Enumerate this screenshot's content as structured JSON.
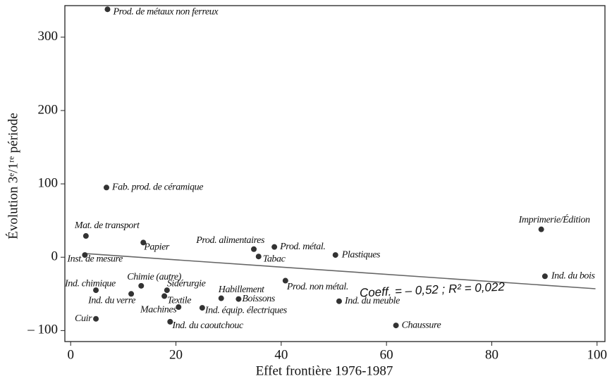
{
  "chart_data": {
    "type": "scatter",
    "xlabel": "Effet frontière 1976-1987",
    "ylabel": "Évolution 3ᵉ/1ʳᵉ période",
    "labels": [
      "Prod. de métaux non ferreux",
      "Fab. prod. de céramique",
      "Mat. de transport",
      "Inst. de mesure",
      "Papier",
      "Prod. alimentaires",
      "Prod. métal.",
      "Tabac",
      "Plastiques",
      "Imprimerie/Édition",
      "Ind. du bois",
      "Prod. non métal.",
      "Ind. du meuble",
      "Chaussure",
      "Ind. chimique",
      "Ind. du verre",
      "Chimie (autre)",
      "Sidérurgie",
      "Textile",
      "Machines",
      "Habillement",
      "Boissons",
      "Ind. équip. électriques",
      "Ind. du caoutchouc",
      "Cuir"
    ],
    "x": [
      7.0,
      6.8,
      2.9,
      2.7,
      13.8,
      34.8,
      38.7,
      35.7,
      50.3,
      89.4,
      90.1,
      40.8,
      51.0,
      61.8,
      4.8,
      11.5,
      13.4,
      18.3,
      17.8,
      20.5,
      28.6,
      31.9,
      25.0,
      18.9,
      4.8
    ],
    "y": [
      338,
      95,
      29,
      3,
      20,
      11,
      14,
      1,
      3,
      38,
      -26,
      -32,
      -60,
      -93,
      -45,
      -50,
      -39,
      -45,
      -53,
      -68,
      -56,
      -57,
      -69,
      -88,
      -84
    ],
    "color": "#333333",
    "trend": {
      "x": [
        2.7,
        99.7
      ],
      "y": [
        5,
        -43
      ],
      "color": "#666666"
    },
    "annotation": "Coeff. = – 0,52  ;  R² = 0,022",
    "xlim": [
      -1.1,
      101.5
    ],
    "ylim": [
      -115,
      343
    ],
    "xticks": [
      0,
      20,
      40,
      60,
      80,
      100
    ],
    "yticks": [
      {
        "value": -100,
        "label": "– 100"
      },
      0,
      100,
      200,
      300
    ]
  }
}
